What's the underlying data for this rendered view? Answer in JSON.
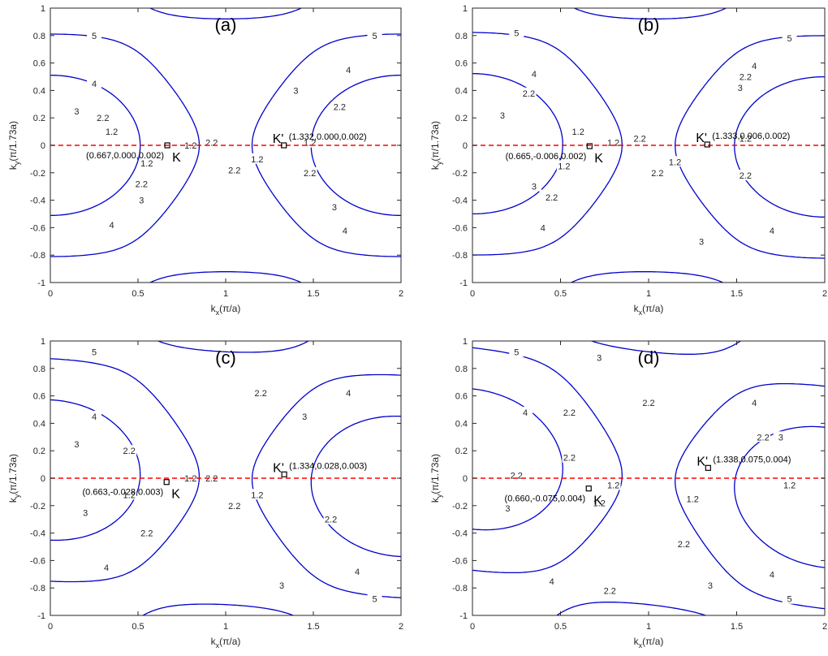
{
  "chart_data": [
    {
      "type": "contour",
      "title": "(a)",
      "xlabel": "k",
      "xlabel_sub": "x",
      "xlabel_unit": "(π/a)",
      "ylabel": "k",
      "ylabel_sub": "y",
      "ylabel_unit": "(π/1.73a)",
      "xlim": [
        0,
        2
      ],
      "ylim": [
        -1,
        1
      ],
      "x_ticks": [
        "0",
        "0.5",
        "1",
        "1.5",
        "2"
      ],
      "y_ticks": [
        "-1",
        "-0.8",
        "-0.6",
        "-0.4",
        "-0.2",
        "0",
        "0.2",
        "0.4",
        "0.6",
        "0.8",
        "1"
      ],
      "contour_levels": [
        "1.2",
        "2.2",
        "3",
        "4",
        "5"
      ],
      "reference_line_y": 0,
      "points": [
        {
          "name": "K",
          "x": 0.667,
          "y": 0.0,
          "annotation": "(0.667,0.000,0.002)"
        },
        {
          "name": "K'",
          "x": 1.332,
          "y": 0.0,
          "annotation": "(1.332,0.000,0.002)"
        }
      ],
      "contour_color": "#0000cc",
      "reference_line_color": "#ff0000"
    },
    {
      "type": "contour",
      "title": "(b)",
      "xlabel": "k",
      "xlabel_sub": "x",
      "xlabel_unit": "(π/a)",
      "ylabel": "k",
      "ylabel_sub": "y",
      "ylabel_unit": "(π/1.73a)",
      "xlim": [
        0,
        2
      ],
      "ylim": [
        -1,
        1
      ],
      "x_ticks": [
        "0",
        "0.5",
        "1",
        "1.5",
        "2"
      ],
      "y_ticks": [
        "-1",
        "-0.8",
        "-0.6",
        "-0.4",
        "-0.2",
        "0",
        "0.2",
        "0.4",
        "0.6",
        "0.8",
        "1"
      ],
      "contour_levels": [
        "1.2",
        "2.2",
        "3",
        "4",
        "5"
      ],
      "reference_line_y": 0,
      "points": [
        {
          "name": "K",
          "x": 0.665,
          "y": -0.006,
          "annotation": "(0.665,-0.006,0.002)"
        },
        {
          "name": "K'",
          "x": 1.333,
          "y": 0.006,
          "annotation": "(1.333,0.006,0.002)"
        }
      ],
      "contour_color": "#0000cc",
      "reference_line_color": "#ff0000"
    },
    {
      "type": "contour",
      "title": "(c)",
      "xlabel": "k",
      "xlabel_sub": "x",
      "xlabel_unit": "(π/a)",
      "ylabel": "k",
      "ylabel_sub": "y",
      "ylabel_unit": "(π/1.73a)",
      "xlim": [
        0,
        2
      ],
      "ylim": [
        -1,
        1
      ],
      "x_ticks": [
        "0",
        "0.5",
        "1",
        "1.5",
        "2"
      ],
      "y_ticks": [
        "-1",
        "-0.8",
        "-0.6",
        "-0.4",
        "-0.2",
        "0",
        "0.2",
        "0.4",
        "0.6",
        "0.8",
        "1"
      ],
      "contour_levels": [
        "1.2",
        "2.2",
        "3",
        "4",
        "5"
      ],
      "reference_line_y": 0,
      "points": [
        {
          "name": "K",
          "x": 0.663,
          "y": -0.028,
          "annotation": "(0.663,-0.028,0.003)"
        },
        {
          "name": "K'",
          "x": 1.334,
          "y": 0.028,
          "annotation": "(1.334,0.028,0.003)"
        }
      ],
      "contour_color": "#0000cc",
      "reference_line_color": "#ff0000"
    },
    {
      "type": "contour",
      "title": "(d)",
      "xlabel": "k",
      "xlabel_sub": "x",
      "xlabel_unit": "(π/a)",
      "ylabel": "k",
      "ylabel_sub": "y",
      "ylabel_unit": "(π/1.73a)",
      "xlim": [
        0,
        2
      ],
      "ylim": [
        -1,
        1
      ],
      "x_ticks": [
        "0",
        "0.5",
        "1",
        "1.5",
        "2"
      ],
      "y_ticks": [
        "-1",
        "-0.8",
        "-0.6",
        "-0.4",
        "-0.2",
        "0",
        "0.2",
        "0.4",
        "0.6",
        "0.8",
        "1"
      ],
      "contour_levels": [
        "1.2",
        "2.2",
        "3",
        "4",
        "5"
      ],
      "reference_line_y": 0,
      "points": [
        {
          "name": "K",
          "x": 0.66,
          "y": -0.075,
          "annotation": "(0.660,-0.075,0.004)"
        },
        {
          "name": "K'",
          "x": 1.338,
          "y": 0.075,
          "annotation": "(1.338,0.075,0.004)"
        }
      ],
      "contour_color": "#0000cc",
      "reference_line_color": "#ff0000"
    }
  ]
}
